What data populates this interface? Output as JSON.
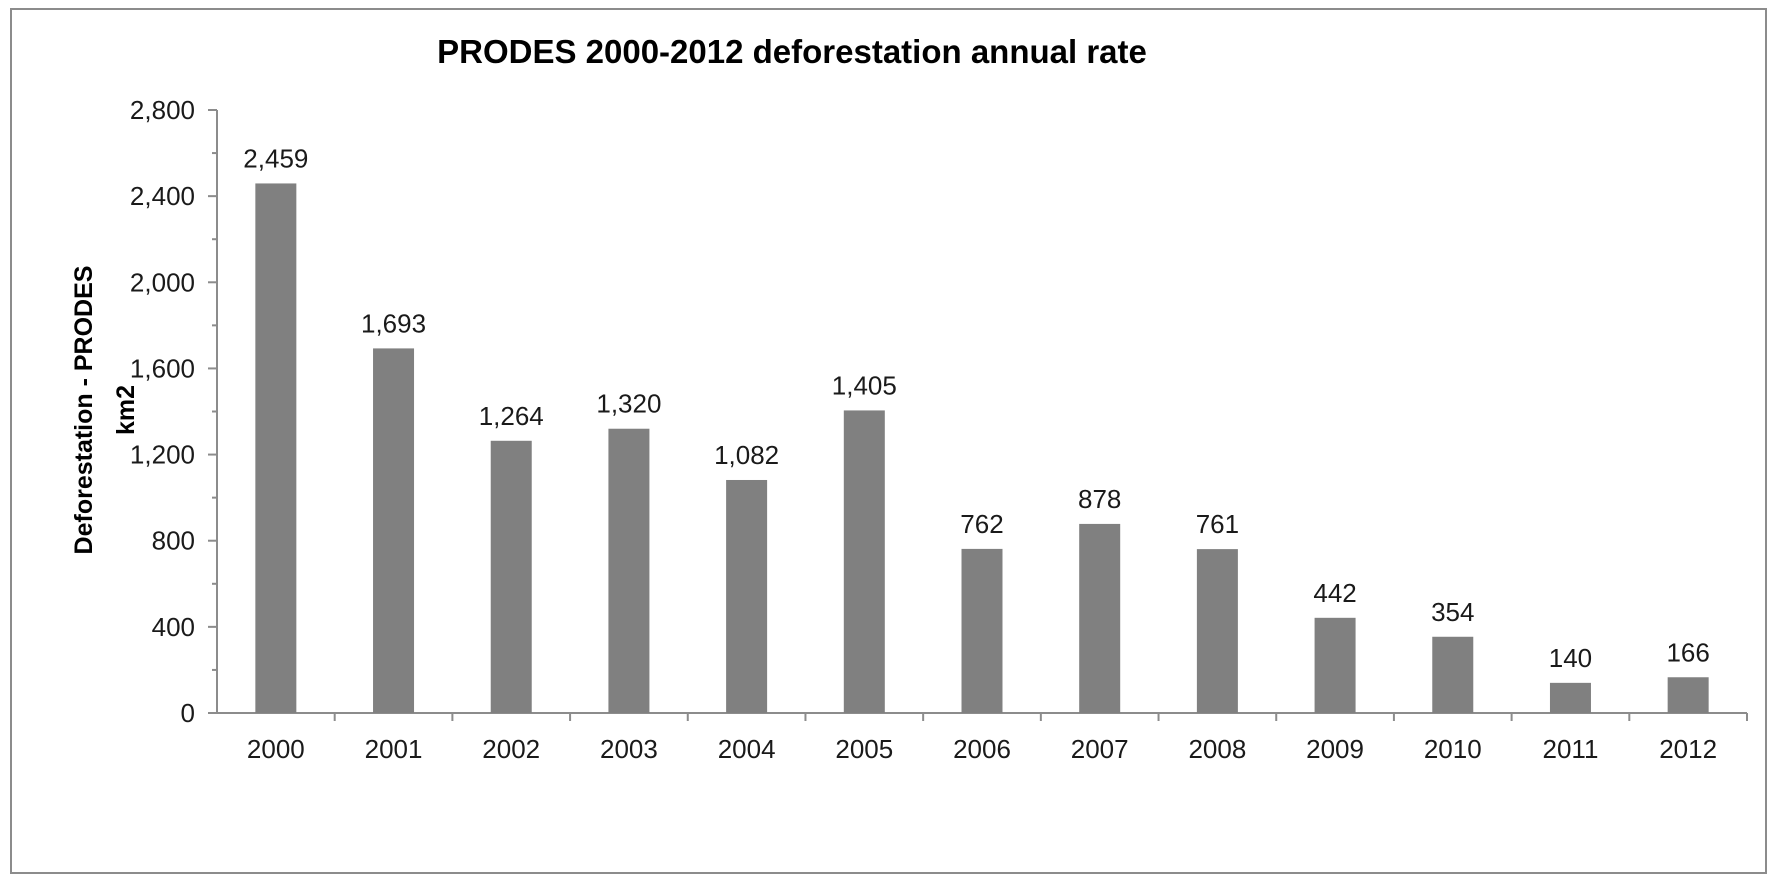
{
  "chart_data": {
    "type": "bar",
    "title": "PRODES 2000-2012 deforestation annual rate",
    "xlabel": "",
    "ylabel_lines": [
      "Deforestation - PRODES",
      "km2"
    ],
    "categories": [
      "2000",
      "2001",
      "2002",
      "2003",
      "2004",
      "2005",
      "2006",
      "2007",
      "2008",
      "2009",
      "2010",
      "2011",
      "2012"
    ],
    "values": [
      2459,
      1693,
      1264,
      1320,
      1082,
      1405,
      762,
      878,
      761,
      442,
      354,
      140,
      166
    ],
    "value_labels": [
      "2,459",
      "1,693",
      "1,264",
      "1,320",
      "1,082",
      "1,405",
      "762",
      "878",
      "761",
      "442",
      "354",
      "140",
      "166"
    ],
    "yticks": [
      0,
      400,
      800,
      1200,
      1600,
      2000,
      2400,
      2800
    ],
    "ytick_labels": [
      "0",
      "400",
      "800",
      "1,200",
      "1,600",
      "2,000",
      "2,400",
      "2,800"
    ],
    "ylim": [
      0,
      2800
    ],
    "grid": false,
    "legend": "none",
    "bar_color": "#808080"
  }
}
